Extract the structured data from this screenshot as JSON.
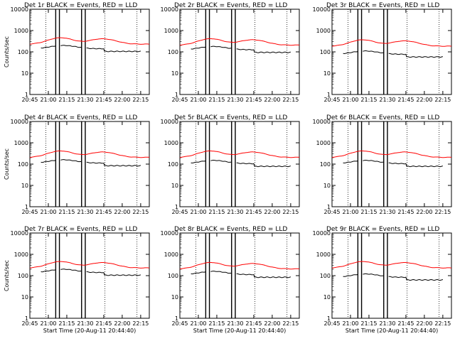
{
  "chart_data": [
    {
      "type": "line",
      "title": "Det 1r BLACK = Events, RED = LLD",
      "ylabel": "Counts/sec",
      "xlabel": "",
      "yscale": "log",
      "ylim": [
        1,
        10000
      ],
      "xlim": [
        "20:45",
        "22:22"
      ],
      "xticks": [
        "20:45",
        "21:00",
        "21:15",
        "21:30",
        "21:45",
        "22:00",
        "22:15"
      ],
      "yticks": [
        "1",
        "10",
        "100",
        "1000",
        "10000"
      ],
      "series": [
        {
          "color": "#ff0000",
          "level": 1.0
        },
        {
          "color": "#000000",
          "level": 1.0
        }
      ]
    },
    {
      "type": "line",
      "title": "Det 2r BLACK = Events, RED = LLD",
      "ylabel": "",
      "xlabel": "",
      "yscale": "log",
      "ylim": [
        1,
        10000
      ],
      "xlim": [
        "20:45",
        "22:22"
      ],
      "xticks": [
        "20:45",
        "21:00",
        "21:15",
        "21:30",
        "21:45",
        "22:00",
        "22:15"
      ],
      "yticks": [
        "1",
        "10",
        "100",
        "1000",
        "10000"
      ],
      "series": [
        {
          "color": "#ff0000",
          "level": 0.9
        },
        {
          "color": "#000000",
          "level": 0.9
        }
      ]
    },
    {
      "type": "line",
      "title": "Det 3r BLACK = Events, RED = LLD",
      "ylabel": "",
      "xlabel": "",
      "yscale": "log",
      "ylim": [
        1,
        10000
      ],
      "xlim": [
        "20:45",
        "22:22"
      ],
      "xticks": [
        "20:45",
        "21:00",
        "21:15",
        "21:30",
        "21:45",
        "22:00",
        "22:15"
      ],
      "yticks": [
        "1",
        "10",
        "100",
        "1000",
        "10000"
      ],
      "series": [
        {
          "color": "#ff0000",
          "level": 0.8
        },
        {
          "color": "#000000",
          "level": 0.55
        }
      ]
    },
    {
      "type": "line",
      "title": "Det 4r BLACK = Events, RED = LLD",
      "ylabel": "Counts/sec",
      "xlabel": "",
      "yscale": "log",
      "ylim": [
        1,
        10000
      ],
      "xlim": [
        "20:45",
        "22:22"
      ],
      "xticks": [
        "20:45",
        "21:00",
        "21:15",
        "21:30",
        "21:45",
        "22:00",
        "22:15"
      ],
      "yticks": [
        "1",
        "10",
        "100",
        "1000",
        "10000"
      ],
      "series": [
        {
          "color": "#ff0000",
          "level": 0.9
        },
        {
          "color": "#000000",
          "level": 0.8
        }
      ]
    },
    {
      "type": "line",
      "title": "Det 5r BLACK = Events, RED = LLD",
      "ylabel": "",
      "xlabel": "",
      "yscale": "log",
      "ylim": [
        1,
        10000
      ],
      "xlim": [
        "20:45",
        "22:22"
      ],
      "xticks": [
        "20:45",
        "21:00",
        "21:15",
        "21:30",
        "21:45",
        "22:00",
        "22:15"
      ],
      "yticks": [
        "1",
        "10",
        "100",
        "1000",
        "10000"
      ],
      "series": [
        {
          "color": "#ff0000",
          "level": 0.9
        },
        {
          "color": "#000000",
          "level": 0.75
        }
      ]
    },
    {
      "type": "line",
      "title": "Det 6r BLACK = Events, RED = LLD",
      "ylabel": "",
      "xlabel": "",
      "yscale": "log",
      "ylim": [
        1,
        10000
      ],
      "xlim": [
        "20:45",
        "22:22"
      ],
      "xticks": [
        "20:45",
        "21:00",
        "21:15",
        "21:30",
        "21:45",
        "22:00",
        "22:15"
      ],
      "yticks": [
        "1",
        "10",
        "100",
        "1000",
        "10000"
      ],
      "series": [
        {
          "color": "#ff0000",
          "level": 0.9
        },
        {
          "color": "#000000",
          "level": 0.75
        }
      ]
    },
    {
      "type": "line",
      "title": "Det 7r BLACK = Events, RED = LLD",
      "ylabel": "Counts/sec",
      "xlabel": "Start Time (20-Aug-11 20:44:40)",
      "yscale": "log",
      "ylim": [
        1,
        10000
      ],
      "xlim": [
        "20:45",
        "22:22"
      ],
      "xticks": [
        "20:45",
        "21:00",
        "21:15",
        "21:30",
        "21:45",
        "22:00",
        "22:15"
      ],
      "yticks": [
        "1",
        "10",
        "100",
        "1000",
        "10000"
      ],
      "series": [
        {
          "color": "#ff0000",
          "level": 1.0
        },
        {
          "color": "#000000",
          "level": 1.0
        }
      ]
    },
    {
      "type": "line",
      "title": "Det 8r BLACK = Events, RED = LLD",
      "ylabel": "",
      "xlabel": "Start Time (20-Aug-11 20:44:40)",
      "yscale": "log",
      "ylim": [
        1,
        10000
      ],
      "xlim": [
        "20:45",
        "22:22"
      ],
      "xticks": [
        "20:45",
        "21:00",
        "21:15",
        "21:30",
        "21:45",
        "22:00",
        "22:15"
      ],
      "yticks": [
        "1",
        "10",
        "100",
        "1000",
        "10000"
      ],
      "series": [
        {
          "color": "#ff0000",
          "level": 0.9
        },
        {
          "color": "#000000",
          "level": 0.8
        }
      ]
    },
    {
      "type": "line",
      "title": "Det 9r BLACK = Events, RED = LLD",
      "ylabel": "",
      "xlabel": "Start Time (20-Aug-11 20:44:40)",
      "yscale": "log",
      "ylim": [
        1,
        10000
      ],
      "xlim": [
        "20:45",
        "22:22"
      ],
      "xticks": [
        "20:45",
        "21:00",
        "21:15",
        "21:30",
        "21:45",
        "22:00",
        "22:15"
      ],
      "yticks": [
        "1",
        "10",
        "100",
        "1000",
        "10000"
      ],
      "series": [
        {
          "color": "#ff0000",
          "level": 1.0
        },
        {
          "color": "#000000",
          "level": 0.6
        }
      ]
    }
  ]
}
